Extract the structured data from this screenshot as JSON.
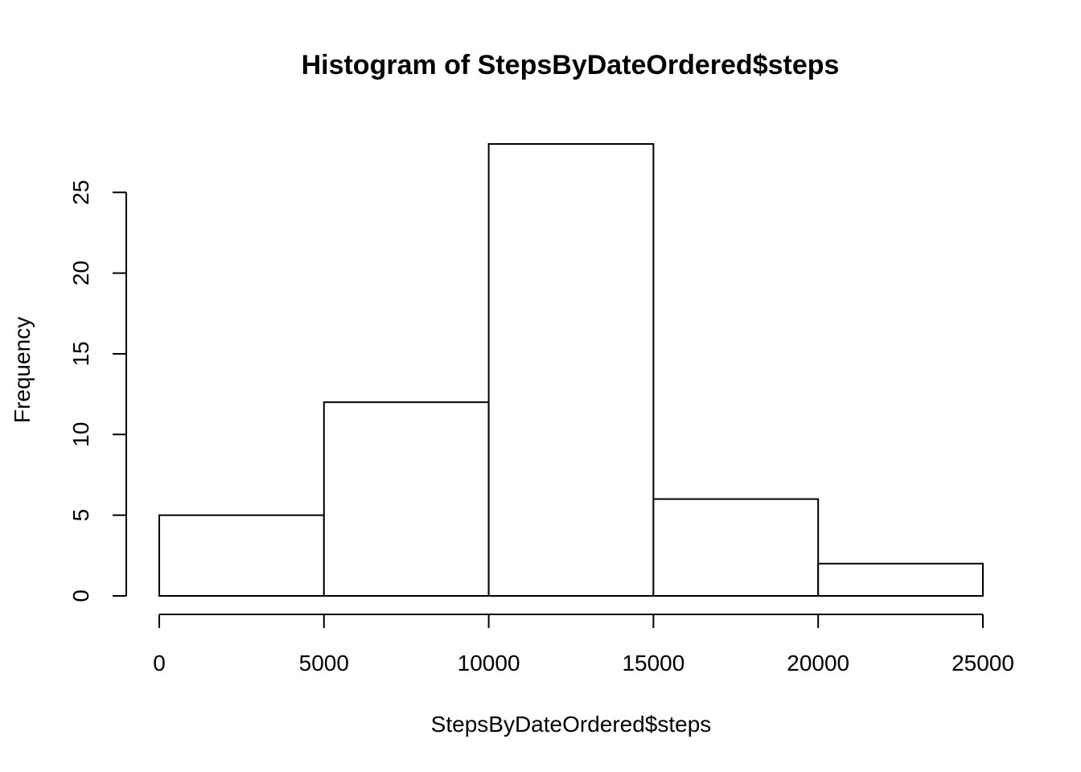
{
  "chart_data": {
    "type": "bar",
    "title": "Histogram of StepsByDateOrdered$steps",
    "xlabel": "StepsByDateOrdered$steps",
    "ylabel": "Frequency",
    "bins": [
      {
        "from": 0,
        "to": 5000,
        "count": 5
      },
      {
        "from": 5000,
        "to": 10000,
        "count": 12
      },
      {
        "from": 10000,
        "to": 15000,
        "count": 28
      },
      {
        "from": 15000,
        "to": 20000,
        "count": 6
      },
      {
        "from": 20000,
        "to": 25000,
        "count": 2
      }
    ],
    "xlim": [
      0,
      25000
    ],
    "ylim": [
      0,
      28
    ],
    "x_ticks": [
      0,
      5000,
      10000,
      15000,
      20000,
      25000
    ],
    "y_ticks": [
      0,
      5,
      10,
      15,
      20,
      25
    ],
    "grid": false,
    "colors": {
      "bar_fill": "#ffffff",
      "bar_stroke": "#000000"
    }
  }
}
